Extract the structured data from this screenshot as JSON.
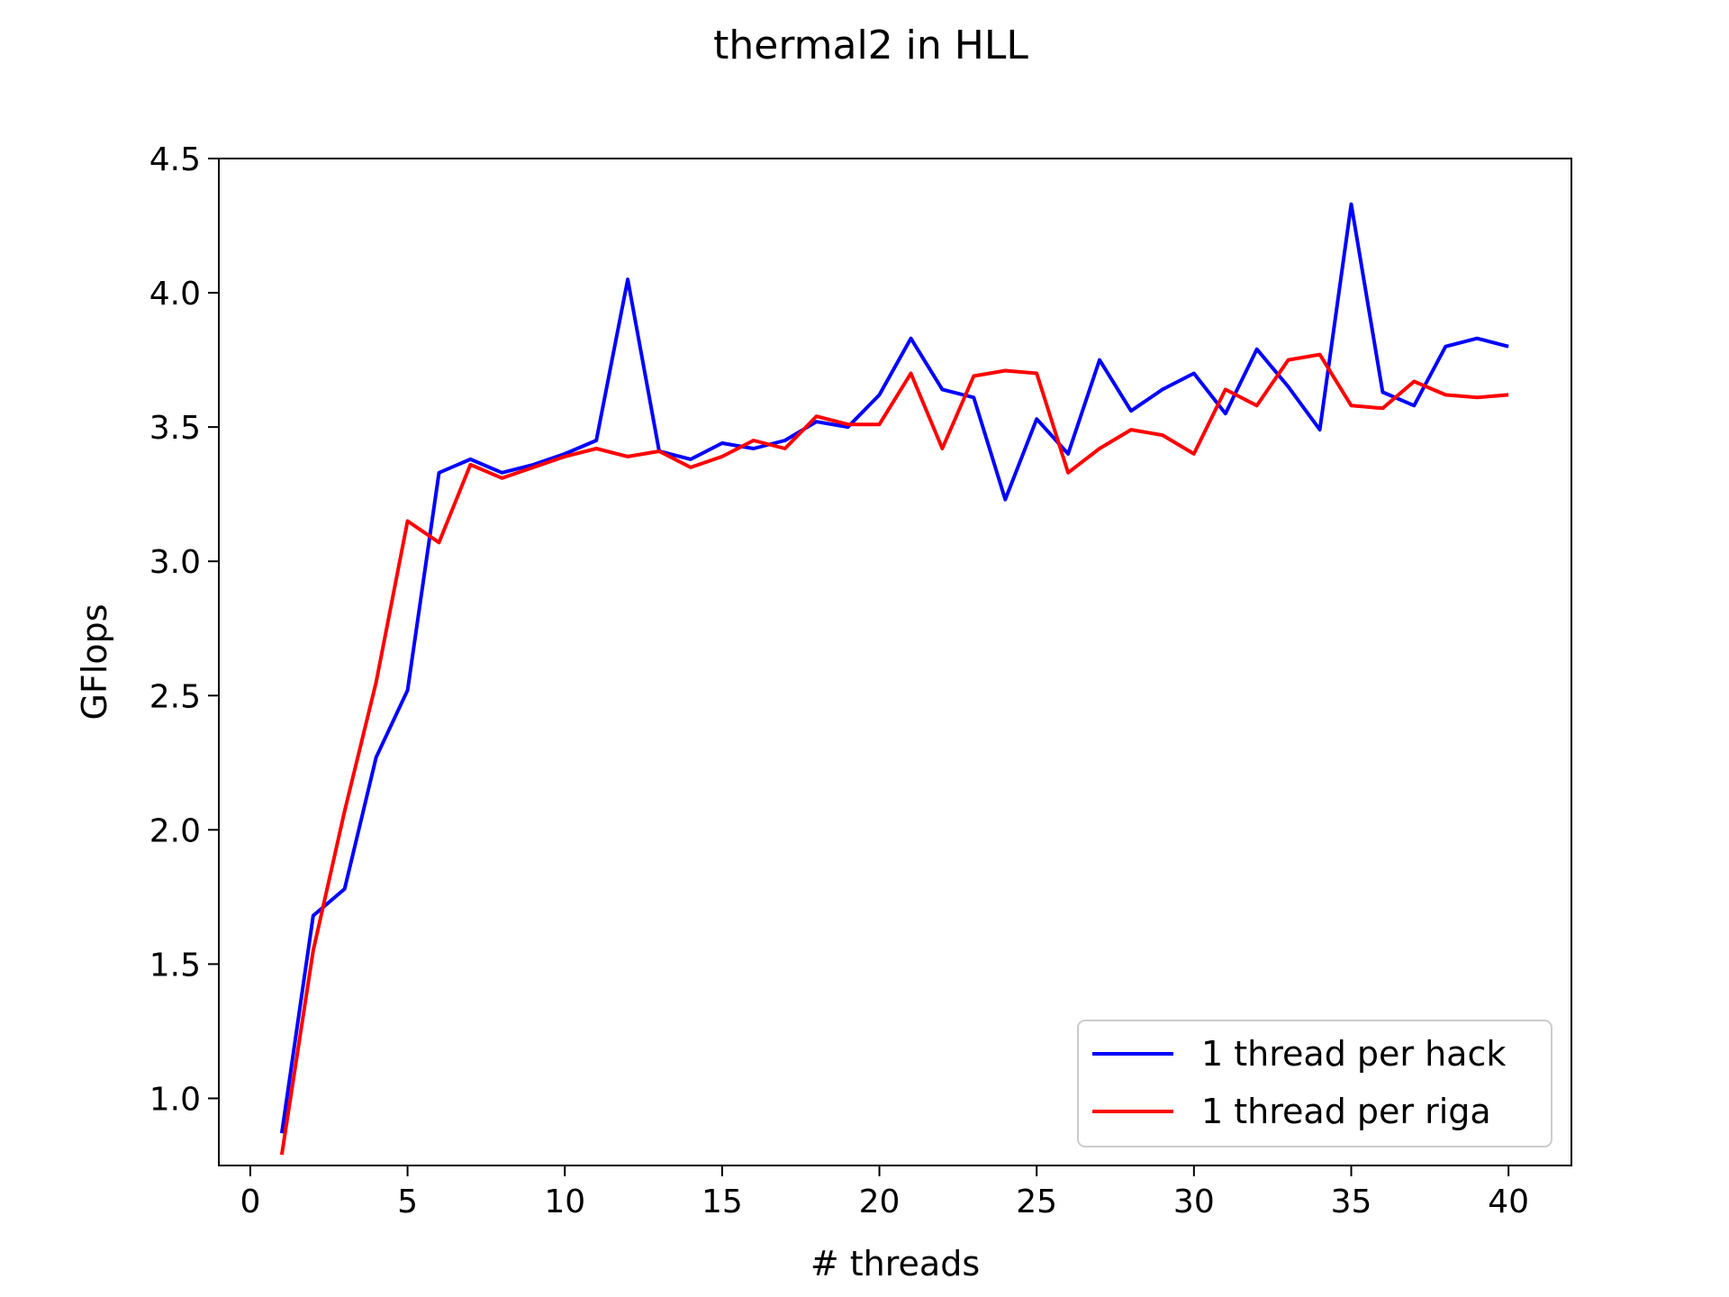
{
  "chart_data": {
    "type": "line",
    "title": "thermal2 in HLL",
    "xlabel": "# threads",
    "ylabel": "GFlops",
    "xlim": [
      -1,
      42
    ],
    "ylim": [
      0.75,
      4.5
    ],
    "xticks": [
      0,
      5,
      10,
      15,
      20,
      25,
      30,
      35,
      40
    ],
    "yticks": [
      1.0,
      1.5,
      2.0,
      2.5,
      3.0,
      3.5,
      4.0,
      4.5
    ],
    "grid": false,
    "legend_position": "lower-right",
    "x": [
      1,
      2,
      3,
      4,
      5,
      6,
      7,
      8,
      9,
      10,
      11,
      12,
      13,
      14,
      15,
      16,
      17,
      18,
      19,
      20,
      21,
      22,
      23,
      24,
      25,
      26,
      27,
      28,
      29,
      30,
      31,
      32,
      33,
      34,
      35,
      36,
      37,
      38,
      39,
      40
    ],
    "series": [
      {
        "name": "1 thread per hack",
        "color": "#0000ff",
        "values": [
          0.87,
          1.68,
          1.78,
          2.27,
          2.52,
          3.33,
          3.38,
          3.33,
          3.36,
          3.4,
          3.45,
          4.05,
          3.41,
          3.38,
          3.44,
          3.42,
          3.45,
          3.52,
          3.5,
          3.62,
          3.83,
          3.64,
          3.61,
          3.23,
          3.53,
          3.4,
          3.75,
          3.56,
          3.64,
          3.7,
          3.55,
          3.79,
          3.65,
          3.49,
          4.33,
          3.63,
          3.58,
          3.8,
          3.83,
          3.8
        ]
      },
      {
        "name": "1 thread per riga",
        "color": "#ff0000",
        "values": [
          0.79,
          1.55,
          2.07,
          2.55,
          3.15,
          3.07,
          3.36,
          3.31,
          3.35,
          3.39,
          3.42,
          3.39,
          3.41,
          3.35,
          3.39,
          3.45,
          3.42,
          3.54,
          3.51,
          3.51,
          3.7,
          3.42,
          3.69,
          3.71,
          3.7,
          3.33,
          3.42,
          3.49,
          3.47,
          3.4,
          3.64,
          3.58,
          3.75,
          3.77,
          3.58,
          3.57,
          3.67,
          3.62,
          3.61,
          3.62
        ]
      }
    ]
  }
}
